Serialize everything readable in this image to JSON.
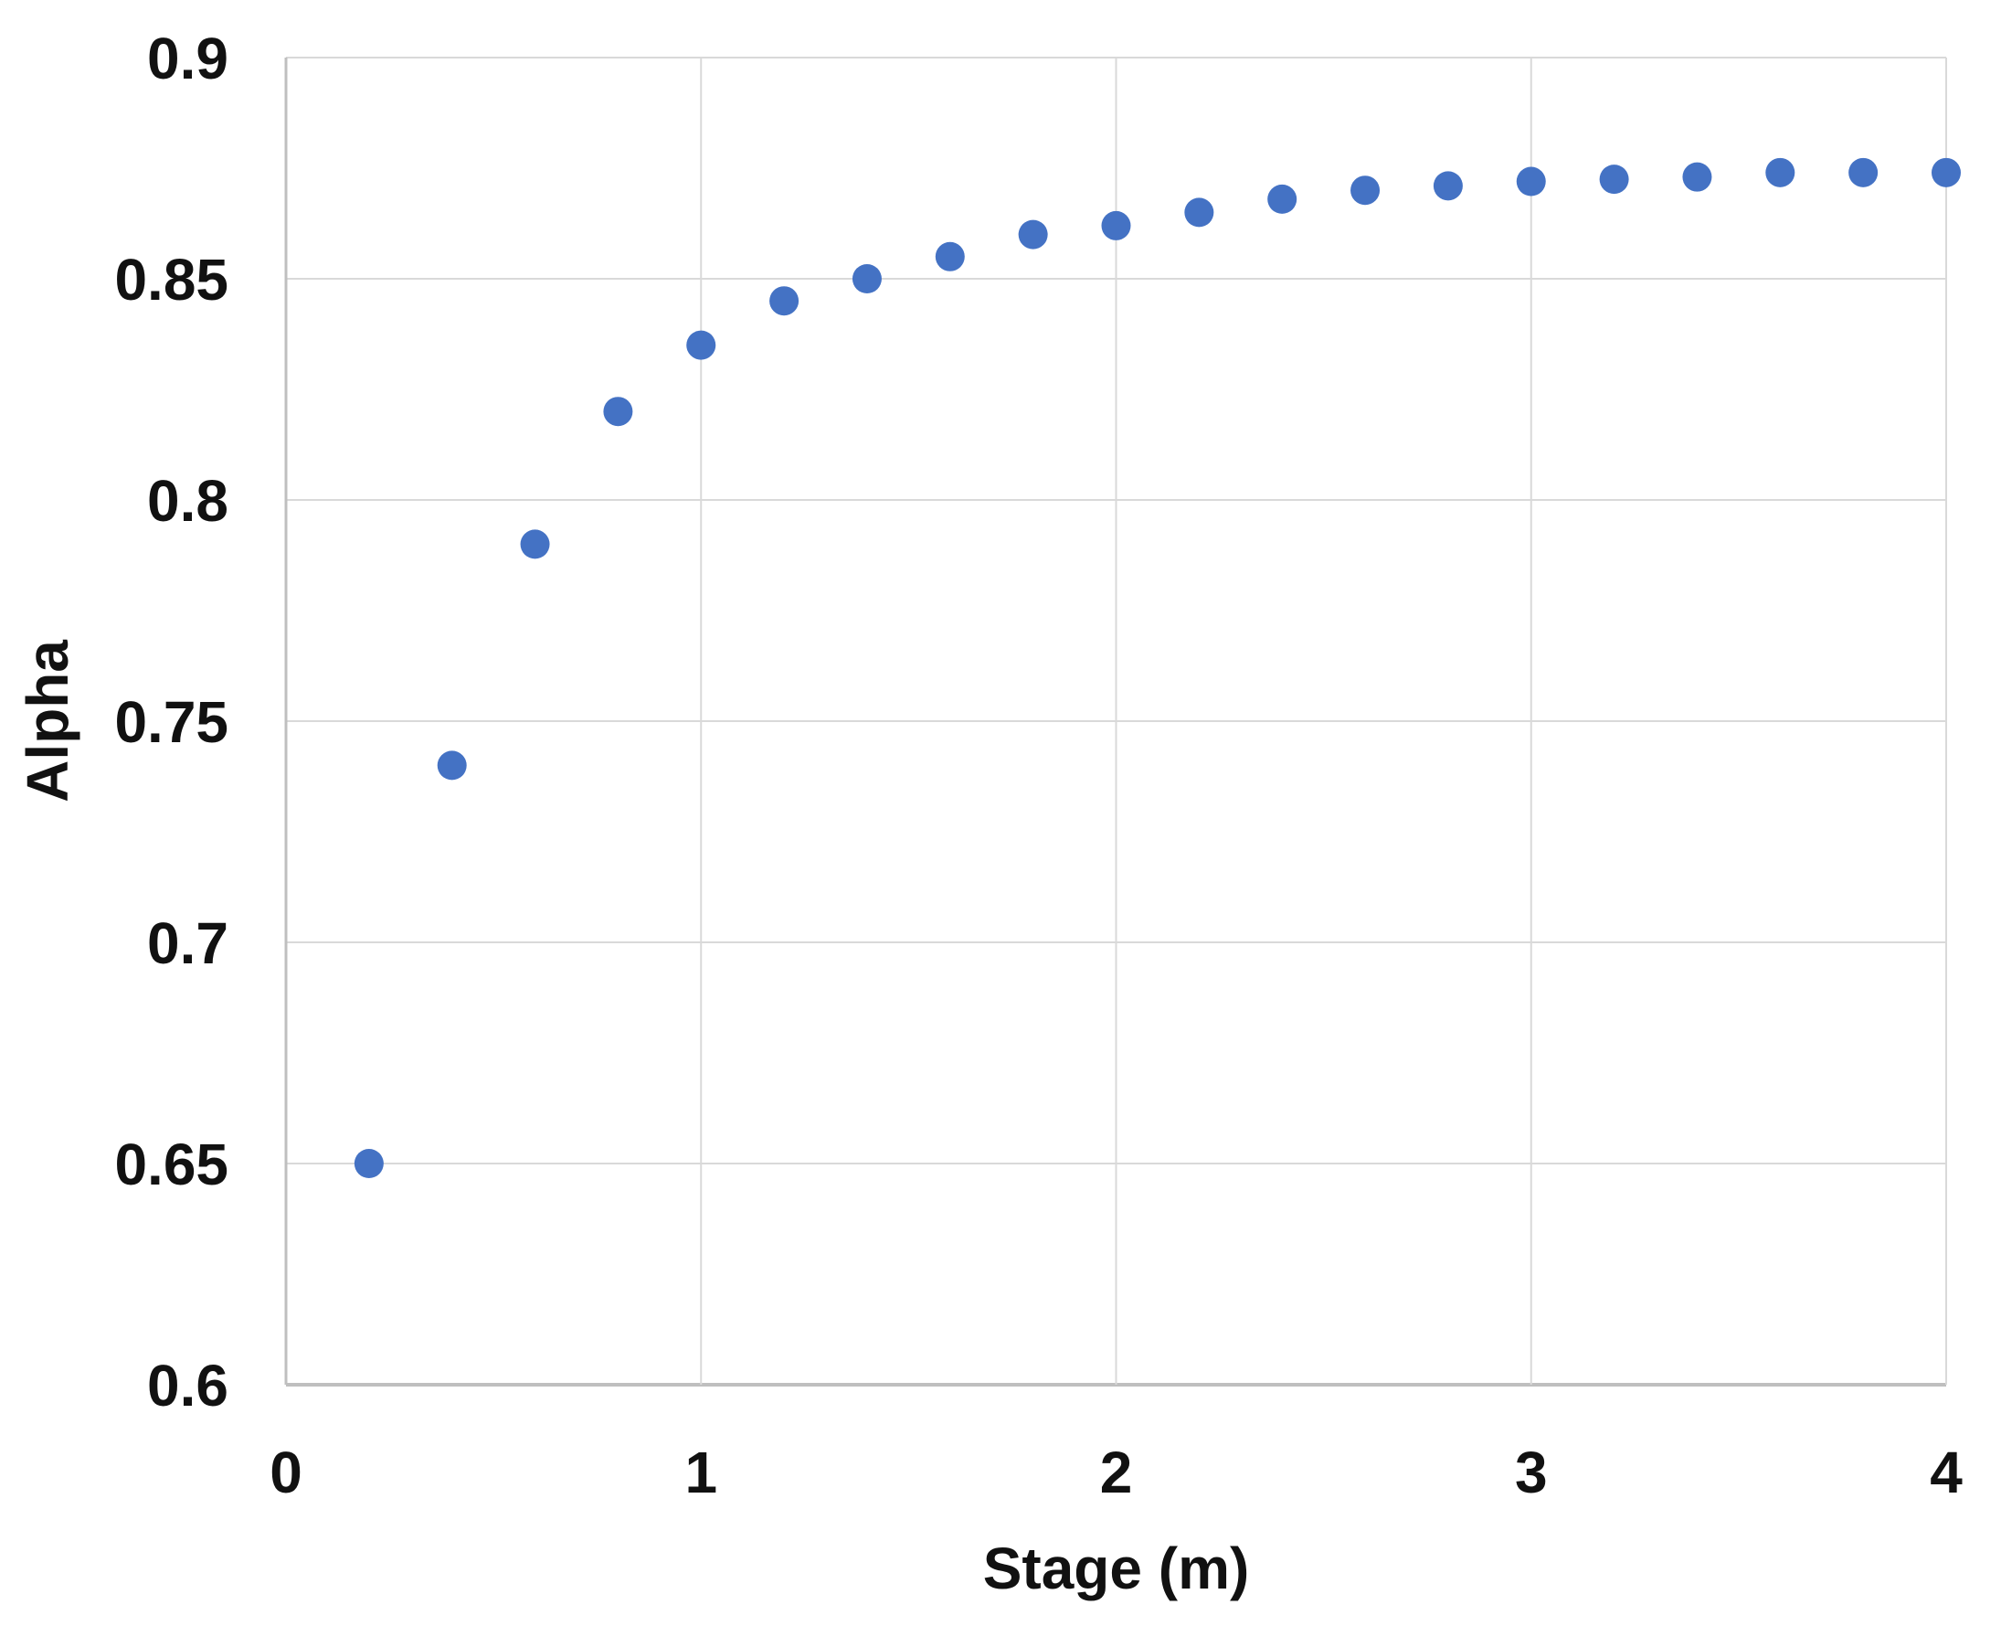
{
  "chart_data": {
    "type": "scatter",
    "x": [
      0.2,
      0.4,
      0.6,
      0.8,
      1.0,
      1.2,
      1.4,
      1.6,
      1.8,
      2.0,
      2.2,
      2.4,
      2.6,
      2.8,
      3.0,
      3.2,
      3.4,
      3.6,
      3.8,
      4.0
    ],
    "y": [
      0.65,
      0.74,
      0.79,
      0.82,
      0.835,
      0.845,
      0.85,
      0.855,
      0.86,
      0.862,
      0.865,
      0.868,
      0.87,
      0.871,
      0.872,
      0.8725,
      0.873,
      0.874,
      0.874,
      0.874
    ],
    "xlabel": "Stage (m)",
    "ylabel": "Alpha",
    "xlim": [
      0,
      4
    ],
    "ylim": [
      0.6,
      0.9
    ],
    "xticks": {
      "values": [
        0,
        1,
        2,
        3,
        4
      ],
      "labels": [
        "0",
        "1",
        "2",
        "3",
        "4"
      ]
    },
    "yticks": {
      "values": [
        0.6,
        0.65,
        0.7,
        0.75,
        0.8,
        0.85,
        0.9
      ],
      "labels": [
        "0.6",
        "0.65",
        "0.7",
        "0.75",
        "0.8",
        "0.85",
        "0.9"
      ]
    },
    "grid": true,
    "legend_position": "none",
    "marker_color": "#4472C4",
    "gridline_color": "#D9D9D9",
    "axis_line_color": "#BFBFBF",
    "tick_text_color": "#111111"
  }
}
